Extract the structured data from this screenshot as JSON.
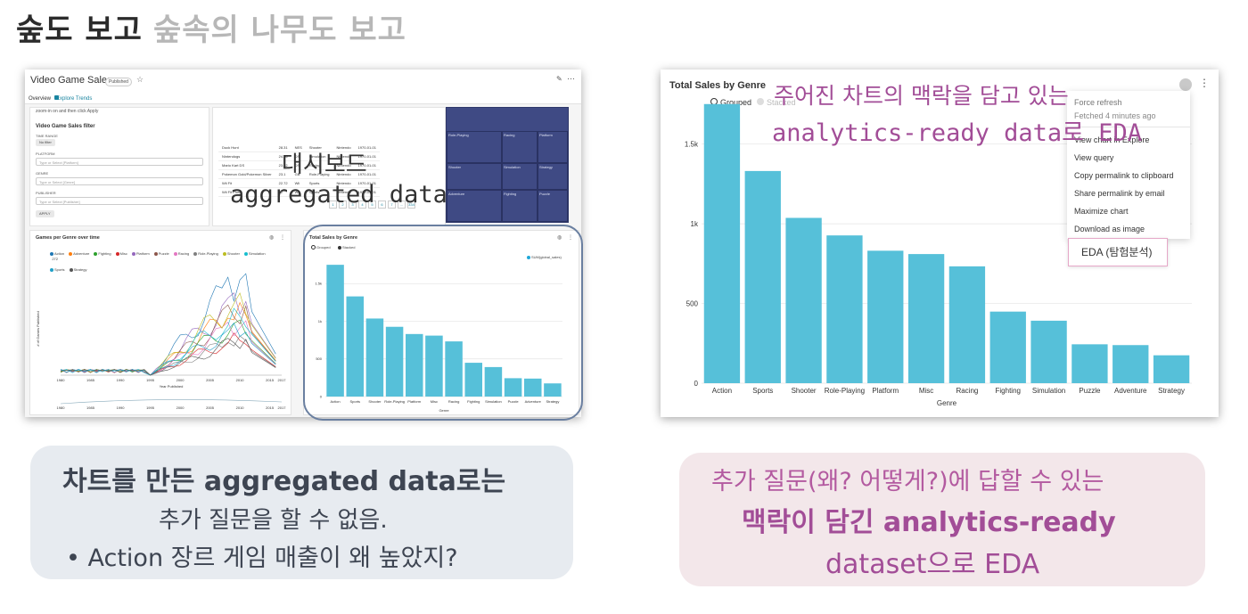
{
  "headline": {
    "dark": "숲도 보고",
    "light": "숲속의 나무도 보고"
  },
  "dashboard": {
    "title": "Video Game Sales",
    "badge": "Published",
    "tabs": [
      "Overview",
      "Explore Trends"
    ],
    "filter_note": "zoom-in on and then click Apply",
    "filter": {
      "title": "Video Game Sales filter",
      "time_range_label": "TIME RANGE",
      "time_range_value": "No filter",
      "platform_label": "PLATFORM",
      "platform_placeholder": "Type or Select [Platform]",
      "genre_label": "GENRE",
      "genre_placeholder": "Type or Select [Genre]",
      "publisher_label": "PUBLISHER",
      "publisher_placeholder": "Type or Select [Publisher]",
      "apply": "APPLY"
    },
    "table_rows": [
      [
        "Duck Hunt",
        "28.31",
        "NES",
        "Shooter",
        "Nintendo",
        "1970-01-01"
      ],
      [
        "Nintendogs",
        "24.76",
        "DS",
        "Simulation",
        "Nintendo",
        "1970-01-01"
      ],
      [
        "Mario Kart DS",
        "23.42",
        "DS",
        "Racing",
        "Nintendo",
        "1970-01-01"
      ],
      [
        "Pokemon Gold/Pokemon Silver",
        "23.1",
        "GB",
        "Role-Playing",
        "Nintendo",
        "1970-01-01"
      ],
      [
        "Wii Fit",
        "22.72",
        "Wii",
        "Sports",
        "Nintendo",
        "1970-01-01"
      ],
      [
        "Wii Fit Plus",
        "22",
        "Wii",
        "Sports",
        "Nintendo",
        "1970-01-01"
      ]
    ],
    "pager": [
      "1",
      "2",
      "3",
      "4",
      "5",
      "6",
      "7",
      "...",
      "334"
    ],
    "treemap_labels": [
      "Role-Playing",
      "Racing",
      "Platform",
      "Shooter",
      "Simulation",
      "Strategy",
      "Adventure",
      "Fighting",
      "Puzzle"
    ],
    "line_title": "Games per Genre over time",
    "line_legend": [
      {
        "name": "Action",
        "color": "#1f77b4"
      },
      {
        "name": "Adventure",
        "color": "#ff7f0e"
      },
      {
        "name": "Fighting",
        "color": "#2ca02c"
      },
      {
        "name": "Misc",
        "color": "#d62728"
      },
      {
        "name": "Platform",
        "color": "#9467bd"
      },
      {
        "name": "Puzzle",
        "color": "#8c564b"
      },
      {
        "name": "Racing",
        "color": "#e377c2"
      },
      {
        "name": "Role-Playing",
        "color": "#7f7f7f"
      },
      {
        "name": "Shooter",
        "color": "#bcbd22"
      },
      {
        "name": "Simulation",
        "color": "#17becf"
      },
      {
        "name": "Sports",
        "color": "#20a0c8"
      },
      {
        "name": "Strategy",
        "color": "#555555"
      }
    ],
    "line_ylabel": "# of Games Published",
    "line_xlabel": "Year Published",
    "line_ymax": "272",
    "line_xticks": [
      "1980",
      "1985",
      "1990",
      "1995",
      "2000",
      "2005",
      "2010",
      "2015",
      "2017"
    ],
    "bar_title": "Total Sales by Genre",
    "bar_legend": [
      "Grouped",
      "Stacked"
    ],
    "bar_metric": "SUM(global_sales)",
    "bar_xlabel": "Genre"
  },
  "overlay_left": {
    "line1": "대시보드",
    "line2": "aggregated data"
  },
  "right_chart": {
    "title": "Total Sales by Genre",
    "legend": [
      "Grouped",
      "Stacked"
    ],
    "xlabel": "Genre",
    "menu": [
      "Force refresh",
      "Fetched 4 minutes ago",
      "View chart in Explore",
      "View query",
      "Copy permalink to clipboard",
      "Share permalink by email",
      "Maximize chart",
      "Download as image"
    ],
    "eda": "EDA (탐험분석)"
  },
  "overlay_right": {
    "line1": "주어진 차트의 맥락을 담고 있는",
    "line2": "analytics-ready data로 EDA"
  },
  "callout_left": {
    "line1": "차트를 만든 aggregated data로는",
    "line2": "추가 질문을 할 수 없음.",
    "line3": "• Action 장르 게임 매출이 왜 높았지?"
  },
  "callout_right": {
    "line1": "추가 질문(왜? 어떻게?)에 답할 수 있는",
    "line2": "맥락이 담긴 analytics-ready",
    "line3": "dataset으로 EDA"
  },
  "colors": {
    "bar": "#56c0d9",
    "accent_pink": "#a24d97",
    "treemap": "#3f4a84"
  },
  "chart_data": [
    {
      "type": "bar",
      "title": "Total Sales by Genre",
      "categories": [
        "Action",
        "Sports",
        "Shooter",
        "Role-Playing",
        "Platform",
        "Misc",
        "Racing",
        "Fighting",
        "Simulation",
        "Puzzle",
        "Adventure",
        "Strategy"
      ],
      "values": [
        1751,
        1331,
        1037,
        927,
        831,
        810,
        733,
        449,
        392,
        244,
        239,
        175
      ],
      "yticks": [
        "0",
        "500",
        "1k",
        "1.5k"
      ],
      "ylim": [
        0,
        1800
      ],
      "xlabel": "Genre"
    }
  ]
}
